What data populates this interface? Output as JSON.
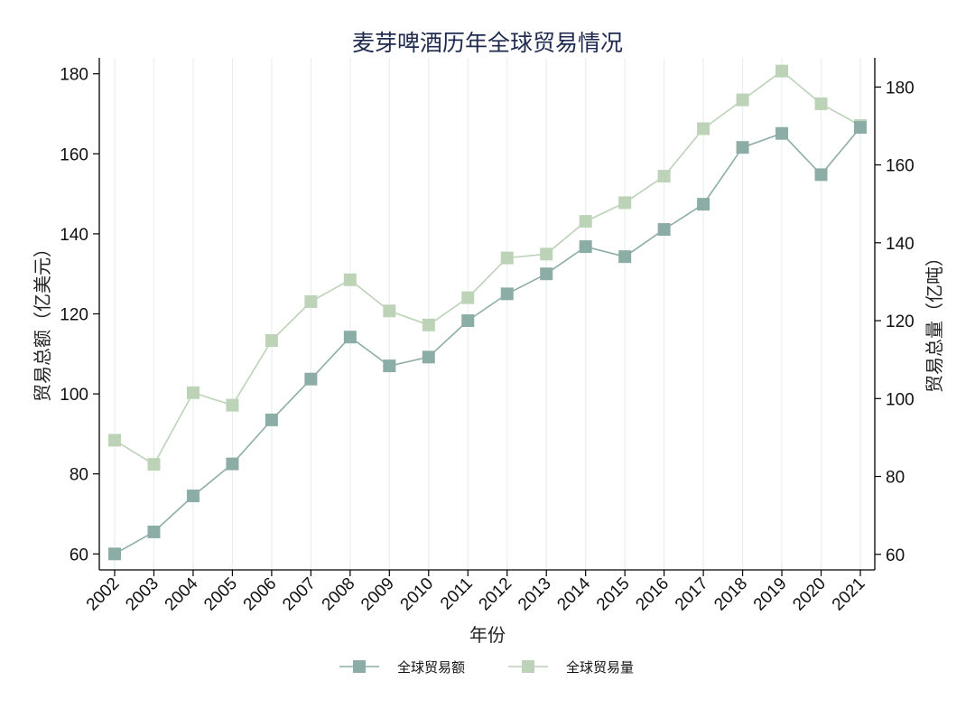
{
  "chart_data": {
    "type": "line",
    "title": "麦芽啤酒历年全球贸易情况",
    "xlabel": "年份",
    "ylabel": "贸易总额（亿美元）",
    "y2label": "贸易总量（亿吨）",
    "categories": [
      "2002",
      "2003",
      "2004",
      "2005",
      "2006",
      "2007",
      "2008",
      "2009",
      "2010",
      "2011",
      "2012",
      "2013",
      "2014",
      "2015",
      "2016",
      "2017",
      "2018",
      "2019",
      "2020",
      "2021"
    ],
    "ylim": [
      56,
      184
    ],
    "yticks": [
      60,
      80,
      100,
      120,
      140,
      160,
      180
    ],
    "y2lim": [
      56,
      187.5
    ],
    "y2ticks": [
      60,
      80,
      100,
      120,
      140,
      160,
      180
    ],
    "grid": "vertical",
    "legend_position": "bottom",
    "series": [
      {
        "name": "全球贸易额",
        "axis": "left",
        "color": "#8cada6",
        "values": [
          60,
          65.5,
          74.5,
          82.5,
          93.5,
          103.7,
          114.2,
          107,
          109.2,
          118.3,
          125,
          130,
          136.8,
          134.3,
          141.1,
          147.4,
          161.6,
          165.1,
          154.8,
          166.6
        ]
      },
      {
        "name": "全球贸易量",
        "axis": "right",
        "color": "#bcd3b8",
        "values": [
          89.3,
          83.1,
          101.5,
          98.3,
          114.9,
          124.9,
          130.5,
          122.5,
          118.9,
          125.9,
          136.1,
          137.1,
          145.5,
          150.3,
          157.1,
          169.3,
          176.7,
          184.1,
          175.7,
          170.1
        ]
      }
    ]
  }
}
